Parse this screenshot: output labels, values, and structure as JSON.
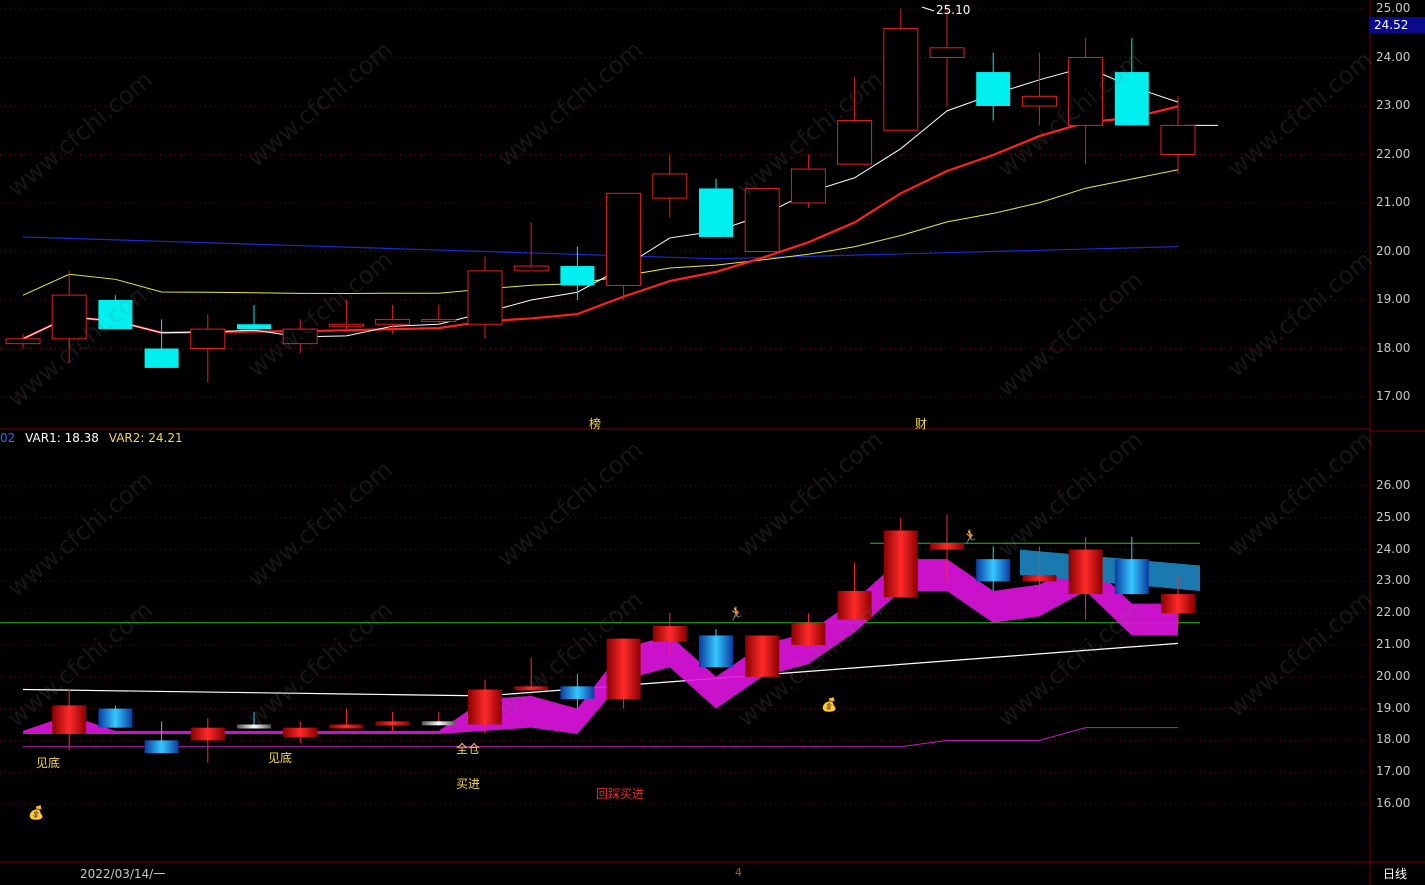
{
  "main_panel": {
    "high_label": "25.10",
    "current_price": "24.52",
    "price_ticks": [
      "25.00",
      "24.00",
      "23.00",
      "22.00",
      "21.00",
      "20.00",
      "19.00",
      "18.00",
      "17.00"
    ],
    "event_marks": [
      "榜",
      "财"
    ],
    "candles": [
      {
        "o": 18.1,
        "c": 18.2,
        "h": 18.3,
        "l": 18.0,
        "up": true
      },
      {
        "o": 18.2,
        "c": 19.1,
        "h": 19.6,
        "l": 17.7,
        "up": true
      },
      {
        "o": 19.0,
        "c": 18.4,
        "h": 19.1,
        "l": 18.4,
        "up": false
      },
      {
        "o": 18.0,
        "c": 17.6,
        "h": 18.6,
        "l": 17.6,
        "up": false
      },
      {
        "o": 18.0,
        "c": 18.4,
        "h": 18.7,
        "l": 17.3,
        "up": true
      },
      {
        "o": 18.5,
        "c": 18.4,
        "h": 18.9,
        "l": 18.4,
        "up": false
      },
      {
        "o": 18.1,
        "c": 18.4,
        "h": 18.6,
        "l": 17.9,
        "up": true
      },
      {
        "o": 18.5,
        "c": 18.5,
        "h": 19.0,
        "l": 18.4,
        "up": true
      },
      {
        "o": 18.5,
        "c": 18.6,
        "h": 18.9,
        "l": 18.3,
        "up": true
      },
      {
        "o": 18.6,
        "c": 18.6,
        "h": 18.9,
        "l": 18.5,
        "up": true
      },
      {
        "o": 18.5,
        "c": 19.6,
        "h": 19.9,
        "l": 18.2,
        "up": true
      },
      {
        "o": 19.6,
        "c": 19.7,
        "h": 20.6,
        "l": 19.6,
        "up": true
      },
      {
        "o": 19.7,
        "c": 19.3,
        "h": 20.1,
        "l": 19.0,
        "up": false
      },
      {
        "o": 19.3,
        "c": 21.2,
        "h": 21.2,
        "l": 19.0,
        "up": true
      },
      {
        "o": 21.1,
        "c": 21.6,
        "h": 22.0,
        "l": 20.7,
        "up": true
      },
      {
        "o": 21.3,
        "c": 20.3,
        "h": 21.5,
        "l": 20.3,
        "up": false
      },
      {
        "o": 20.0,
        "c": 21.3,
        "h": 21.3,
        "l": 20.0,
        "up": true
      },
      {
        "o": 21.0,
        "c": 21.7,
        "h": 22.0,
        "l": 20.9,
        "up": true
      },
      {
        "o": 21.8,
        "c": 22.7,
        "h": 23.6,
        "l": 21.8,
        "up": true
      },
      {
        "o": 22.5,
        "c": 24.6,
        "h": 25.0,
        "l": 22.5,
        "up": true
      },
      {
        "o": 24.0,
        "c": 24.2,
        "h": 25.1,
        "l": 23.0,
        "up": true
      },
      {
        "o": 23.7,
        "c": 23.0,
        "h": 24.1,
        "l": 22.7,
        "up": false
      },
      {
        "o": 23.0,
        "c": 23.2,
        "h": 24.1,
        "l": 22.6,
        "up": true
      },
      {
        "o": 22.6,
        "c": 24.0,
        "h": 24.4,
        "l": 21.8,
        "up": true
      },
      {
        "o": 23.7,
        "c": 22.6,
        "h": 24.4,
        "l": 22.6,
        "up": false
      },
      {
        "o": 22.0,
        "c": 22.6,
        "h": 23.2,
        "l": 21.6,
        "up": true
      }
    ]
  },
  "sub_panel": {
    "var_prefix": "02",
    "var1_label": "VAR1: 18.38",
    "var2_label": "VAR2: 24.21",
    "price_ticks": [
      "26.00",
      "25.00",
      "24.00",
      "23.00",
      "22.00",
      "21.00",
      "20.00",
      "19.00",
      "18.00",
      "17.00",
      "16.00"
    ],
    "signals": [
      {
        "text": "见底",
        "color": "#f5d84a"
      },
      {
        "text": "见底",
        "color": "#f5d84a"
      },
      {
        "text": "全仓",
        "color": "#f5d84a"
      },
      {
        "text": "买进",
        "color": "#f5d84a"
      },
      {
        "text": "回踩买进",
        "color": "#e03030"
      }
    ]
  },
  "footer": {
    "date": "2022/03/14/一",
    "period": "日线",
    "mini_label": "4"
  },
  "watermark_text": "www.cfchi.com",
  "colors": {
    "up": "#e02020",
    "down": "#00f0f0",
    "ma5": "#ffffff",
    "ma10": "#ff2020",
    "ma20": "#e6e84a",
    "ma60": "#1a2acc",
    "grid": "#7a0000",
    "var1": "#ffffff",
    "var2": "#f5d84a"
  }
}
